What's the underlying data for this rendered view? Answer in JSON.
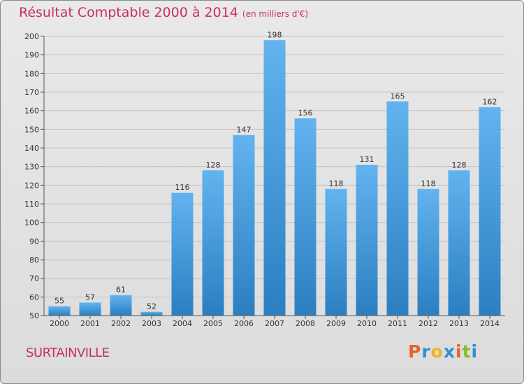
{
  "chart_data": {
    "type": "bar",
    "title": "Résultat Comptable 2000 à 2014",
    "unit_label": "(en milliers d'€)",
    "categories": [
      "2000",
      "2001",
      "2002",
      "2003",
      "2004",
      "2005",
      "2006",
      "2007",
      "2008",
      "2009",
      "2010",
      "2011",
      "2012",
      "2013",
      "2014"
    ],
    "values": [
      55,
      57,
      61,
      52,
      116,
      128,
      147,
      198,
      156,
      118,
      131,
      165,
      118,
      128,
      162
    ],
    "ylim": [
      50,
      200
    ],
    "yticks": [
      50,
      60,
      70,
      80,
      90,
      100,
      110,
      120,
      130,
      140,
      150,
      160,
      170,
      180,
      190,
      200
    ],
    "grid": true,
    "bar_color_top": "#62b3ef",
    "bar_color_bottom": "#2b7fc1"
  },
  "footer": {
    "place": "SURTAINVILLE",
    "logo_letters": [
      "P",
      "r",
      "o",
      "x",
      "i",
      "t",
      "i"
    ],
    "logo_colors": [
      "#e8612c",
      "#2d8fd4",
      "#f0b323",
      "#2d8fd4",
      "#e8612c",
      "#88bb2c",
      "#2d8fd4"
    ]
  }
}
